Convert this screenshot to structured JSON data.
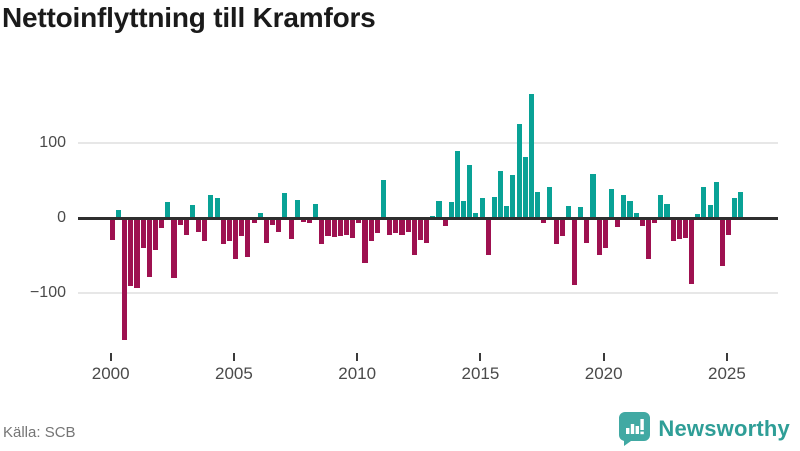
{
  "header": {
    "title": "Nettoinflyttning till Kramfors"
  },
  "footer": {
    "source": "Källa: SCB",
    "brand": "Newsworthy"
  },
  "colors": {
    "positive": "#09a296",
    "negative": "#9e1150",
    "brand_teal": "#2f9e97",
    "axis": "#2f2f2f",
    "grid": "#e7e7e7",
    "tick_label": "#4a4a4a",
    "source_text": "#757575",
    "title_text": "#1a1a1a"
  },
  "chart_data": {
    "type": "bar",
    "title": "Nettoinflyttning till Kramfors",
    "frequency": "quarterly",
    "start": "2000-Q1",
    "end": "2025-Q3",
    "grid": "horizontal",
    "legend": "none",
    "x_tick_labels": [
      "2000",
      "2005",
      "2010",
      "2015",
      "2020",
      "2025"
    ],
    "y_ticks": [
      100,
      0,
      -100
    ],
    "y_tick_labels": [
      "100",
      "0",
      "−100"
    ],
    "ylim": [
      -175,
      175
    ],
    "values": [
      -28,
      10,
      -162,
      -90,
      -92,
      -39,
      -77,
      -41,
      -12,
      20,
      -79,
      -8,
      -21,
      16,
      -17,
      -29,
      29,
      25,
      -34,
      -30,
      -54,
      -23,
      -51,
      -5,
      5,
      -32,
      -8,
      -17,
      32,
      -27,
      23,
      -4,
      -6,
      17,
      -33,
      -23,
      -24,
      -23,
      -22,
      -25,
      -6,
      -59,
      -30,
      -19,
      49,
      -21,
      -19,
      -21,
      -18,
      -48,
      -28,
      -32,
      2,
      21,
      -9,
      20,
      88,
      21,
      70,
      5,
      25,
      -48,
      27,
      62,
      15,
      56,
      124,
      80,
      165,
      33,
      -5,
      40,
      -34,
      -23,
      15,
      -88,
      13,
      -32,
      57,
      -48,
      -39,
      37,
      -11,
      30,
      21,
      5,
      -9,
      -53,
      -6,
      29,
      17,
      -30,
      -27,
      -25,
      -87,
      4,
      40,
      16,
      47,
      -63,
      -21,
      25,
      33
    ]
  }
}
